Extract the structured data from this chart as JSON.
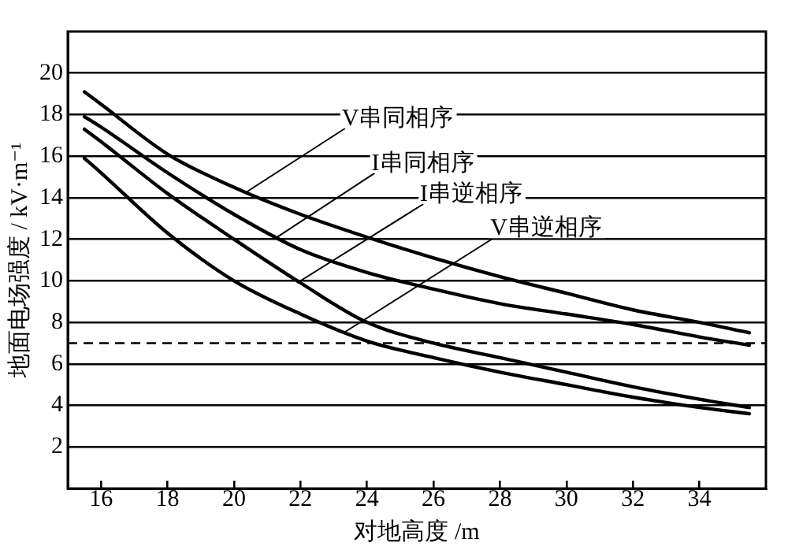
{
  "chart_data": {
    "type": "line",
    "xlabel": "对地高度 /m",
    "ylabel": "地面电场强度 / kV·m⁻¹",
    "xlim": [
      15,
      36
    ],
    "xticks": [
      16,
      18,
      20,
      22,
      24,
      26,
      28,
      30,
      32,
      34
    ],
    "ylim": [
      0,
      22
    ],
    "yticks": [
      2,
      4,
      6,
      8,
      10,
      12,
      14,
      16,
      18,
      20
    ],
    "grid": "y",
    "legend": false,
    "marker": "none",
    "line_style": "solid",
    "series": [
      {
        "x": [
          15.5,
          16,
          18,
          20,
          22,
          24,
          26,
          28,
          30,
          32,
          34,
          35.5
        ],
        "color": "#000000",
        "values": [
          19.1,
          18.5,
          16.1,
          14.5,
          13.2,
          12.1,
          11.1,
          10.2,
          9.4,
          8.6,
          8.0,
          7.5
        ]
      },
      {
        "x": [
          15.5,
          16,
          18,
          20,
          22,
          24,
          26,
          28,
          30,
          32,
          34,
          35.5
        ],
        "color": "#000000",
        "values": [
          17.9,
          17.4,
          15.2,
          13.2,
          11.5,
          10.4,
          9.6,
          8.9,
          8.4,
          7.9,
          7.3,
          6.9
        ]
      },
      {
        "x": [
          15.5,
          16,
          18,
          20,
          22,
          24,
          26,
          28,
          30,
          32,
          34,
          35.5
        ],
        "color": "#000000",
        "values": [
          17.3,
          16.7,
          14.2,
          12.0,
          9.9,
          8.0,
          7.0,
          6.3,
          5.6,
          4.9,
          4.3,
          3.9
        ]
      },
      {
        "x": [
          15.5,
          16,
          18,
          20,
          22,
          24,
          26,
          28,
          30,
          32,
          34,
          35.5
        ],
        "color": "#000000",
        "values": [
          15.9,
          15.2,
          12.3,
          10.0,
          8.4,
          7.1,
          6.3,
          5.6,
          5.0,
          4.4,
          3.9,
          3.6
        ]
      }
    ],
    "ref_lines": [
      {
        "axis": "y",
        "value": 7,
        "color": "#000000",
        "line_style": "dashed"
      }
    ],
    "annotations": [
      {
        "text": "V串同相序",
        "x": 20.4,
        "y": 14.3
      },
      {
        "text": "I串同相序",
        "x": 21.2,
        "y": 12.0
      },
      {
        "text": "I串逆相序",
        "x": 21.9,
        "y": 9.9
      },
      {
        "text": "V串逆相序",
        "x": 23.3,
        "y": 7.5
      }
    ]
  }
}
